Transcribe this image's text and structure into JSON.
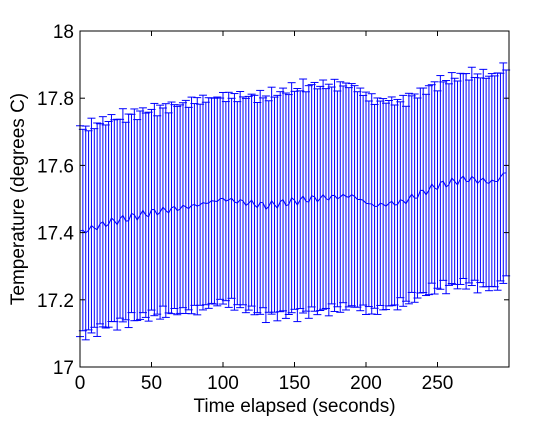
{
  "chart_data": {
    "type": "line",
    "xlabel": "Time elapsed (seconds)",
    "ylabel": "Temperature (degrees C)",
    "xlim": [
      0,
      300
    ],
    "ylim": [
      17,
      18
    ],
    "xticks": [
      0,
      50,
      100,
      150,
      200,
      250
    ],
    "yticks": [
      17,
      17.2,
      17.4,
      17.6,
      17.8,
      18
    ],
    "grid": false,
    "error_bars": true,
    "series": [
      {
        "color": "#0000ff",
        "keypoints": [
          {
            "x": 0,
            "y": 17.4,
            "err": 0.3
          },
          {
            "x": 20,
            "y": 17.43,
            "err": 0.3
          },
          {
            "x": 50,
            "y": 17.46,
            "err": 0.31
          },
          {
            "x": 80,
            "y": 17.48,
            "err": 0.32
          },
          {
            "x": 100,
            "y": 17.5,
            "err": 0.31
          },
          {
            "x": 130,
            "y": 17.48,
            "err": 0.32
          },
          {
            "x": 160,
            "y": 17.5,
            "err": 0.33
          },
          {
            "x": 190,
            "y": 17.51,
            "err": 0.33
          },
          {
            "x": 205,
            "y": 17.48,
            "err": 0.32
          },
          {
            "x": 225,
            "y": 17.49,
            "err": 0.31
          },
          {
            "x": 250,
            "y": 17.54,
            "err": 0.31
          },
          {
            "x": 270,
            "y": 17.56,
            "err": 0.31
          },
          {
            "x": 290,
            "y": 17.55,
            "err": 0.31
          },
          {
            "x": 298,
            "y": 17.58,
            "err": 0.31
          }
        ]
      }
    ]
  }
}
